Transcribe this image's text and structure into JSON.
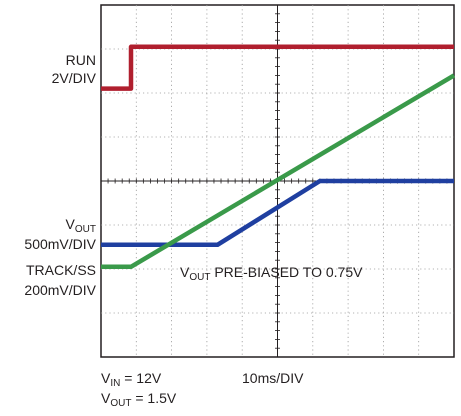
{
  "chart_data": {
    "type": "line",
    "title": "",
    "grid": true,
    "x_divisions": 10,
    "y_divisions": 8,
    "x_scale_label": "10ms/DIV",
    "conditions": {
      "vin": {
        "prefix": "V",
        "sub": "IN",
        "suffix": " = 12V"
      },
      "vout": {
        "prefix": "V",
        "sub": "OUT",
        "suffix": " = 1.5V"
      }
    },
    "annotation": {
      "prefix": "V",
      "sub": "OUT",
      "suffix": " PRE-BIASED TO 0.75V"
    },
    "channels": [
      {
        "name": "RUN",
        "scale": "2V/DIV",
        "color": "#b01f2e"
      },
      {
        "name_prefix": "V",
        "name_sub": "OUT",
        "scale": "500mV/DIV",
        "color": "#1f3fa0"
      },
      {
        "name": "TRACK/SS",
        "scale": "200mV/DIV",
        "color": "#3a9a4a"
      }
    ],
    "series": [
      {
        "name": "RUN",
        "x": [
          0,
          0.85,
          0.85,
          10
        ],
        "y": [
          6.1,
          6.1,
          7.05,
          7.05
        ]
      },
      {
        "name": "VOUT",
        "x": [
          0,
          3.3,
          6.2,
          10
        ],
        "y": [
          2.55,
          2.55,
          4.0,
          4.0
        ]
      },
      {
        "name": "TRACK/SS",
        "x": [
          0,
          0.85,
          10
        ],
        "y": [
          2.05,
          2.05,
          6.4
        ]
      }
    ]
  }
}
